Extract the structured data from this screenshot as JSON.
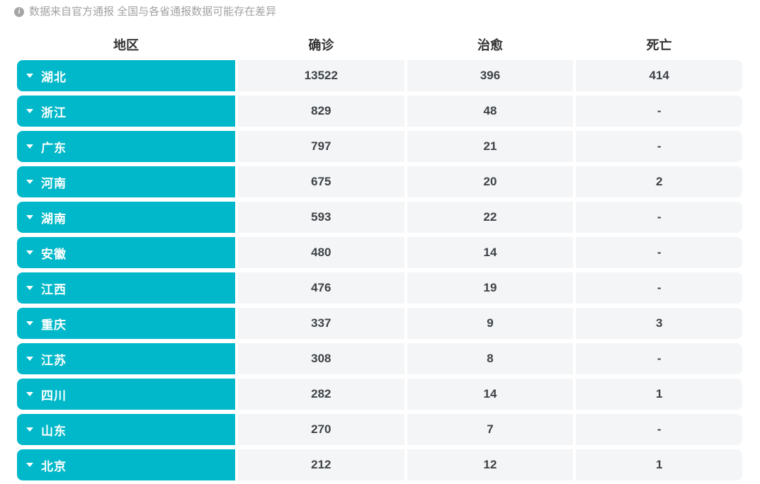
{
  "disclaimer": {
    "text": "数据来自官方通报 全国与各省通报数据可能存在差异",
    "icon": "info-icon"
  },
  "table": {
    "headers": {
      "region": "地区",
      "confirmed": "确诊",
      "cured": "治愈",
      "deaths": "死亡"
    },
    "rows": [
      {
        "region": "湖北",
        "confirmed": "13522",
        "cured": "396",
        "deaths": "414"
      },
      {
        "region": "浙江",
        "confirmed": "829",
        "cured": "48",
        "deaths": "-"
      },
      {
        "region": "广东",
        "confirmed": "797",
        "cured": "21",
        "deaths": "-"
      },
      {
        "region": "河南",
        "confirmed": "675",
        "cured": "20",
        "deaths": "2"
      },
      {
        "region": "湖南",
        "confirmed": "593",
        "cured": "22",
        "deaths": "-"
      },
      {
        "region": "安徽",
        "confirmed": "480",
        "cured": "14",
        "deaths": "-"
      },
      {
        "region": "江西",
        "confirmed": "476",
        "cured": "19",
        "deaths": "-"
      },
      {
        "region": "重庆",
        "confirmed": "337",
        "cured": "9",
        "deaths": "3"
      },
      {
        "region": "江苏",
        "confirmed": "308",
        "cured": "8",
        "deaths": "-"
      },
      {
        "region": "四川",
        "confirmed": "282",
        "cured": "14",
        "deaths": "1"
      },
      {
        "region": "山东",
        "confirmed": "270",
        "cured": "7",
        "deaths": "-"
      },
      {
        "region": "北京",
        "confirmed": "212",
        "cured": "12",
        "deaths": "1"
      }
    ]
  },
  "colors": {
    "accent": "#00b8c9",
    "cell_background": "#f4f5f6",
    "number_text": "#3e4347",
    "muted_text": "#a2a2a2"
  }
}
